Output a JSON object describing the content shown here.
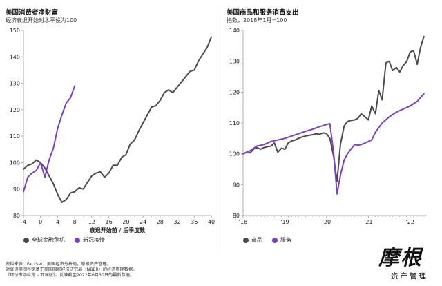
{
  "colors": {
    "dark": "#4a4a4a",
    "purple": "#7b3fc7",
    "axis": "#999999",
    "text": "#222222"
  },
  "chart_data": [
    {
      "type": "line",
      "title": "美国消费者净财富",
      "subtitle": "经济衰退开始时水平设为100",
      "xlabel": "衰退开始前 / 后季度数",
      "ylabel": "",
      "xlim": [
        -4,
        40
      ],
      "ylim": [
        80,
        150
      ],
      "xticks": [
        -4,
        0,
        4,
        8,
        12,
        16,
        20,
        24,
        28,
        32,
        36,
        40
      ],
      "yticks": [
        80,
        90,
        100,
        110,
        120,
        130,
        140,
        150
      ],
      "series": [
        {
          "name": "全球金融危机",
          "color": "#4a4a4a",
          "x": [
            -4,
            -3,
            -2,
            -1,
            0,
            1,
            2,
            3,
            4,
            5,
            6,
            7,
            8,
            9,
            10,
            11,
            12,
            13,
            14,
            15,
            16,
            17,
            18,
            19,
            20,
            21,
            22,
            23,
            24,
            25,
            26,
            27,
            28,
            29,
            30,
            31,
            32,
            33,
            34,
            35,
            36,
            37,
            38,
            39,
            40
          ],
          "y": [
            97.5,
            99,
            99.5,
            101,
            100,
            98,
            95,
            92,
            88,
            85,
            86,
            88.5,
            89,
            90.5,
            90,
            92.5,
            95,
            96,
            96.5,
            94.5,
            96,
            99,
            99,
            102,
            103,
            107,
            108.5,
            112,
            115,
            118,
            121,
            121.5,
            123.5,
            126.5,
            127.5,
            126.5,
            128.5,
            130.5,
            132.5,
            134.5,
            135,
            138.5,
            141,
            143.5,
            147.5
          ]
        },
        {
          "name": "新冠疫情",
          "color": "#7b3fc7",
          "x": [
            -4,
            -3,
            -2,
            -1,
            0,
            1,
            2,
            3,
            4,
            5,
            6,
            7,
            8
          ],
          "y": [
            89,
            94.5,
            96,
            97,
            100,
            94.5,
            101,
            105.5,
            113,
            118,
            122.5,
            124.5,
            129
          ]
        }
      ],
      "legend": [
        "全球金融危机",
        "新冠疫情"
      ]
    },
    {
      "type": "line",
      "title": "美国商品和服务消费支出",
      "subtitle": "指数，2018年1月=100",
      "xlabel": "",
      "ylabel": "",
      "xlim": [
        2018.0,
        2022.4
      ],
      "ylim": [
        80,
        140
      ],
      "xticks": [
        2018,
        2019,
        2020,
        2021,
        2022
      ],
      "xticklabels": [
        "'18",
        "'19",
        "'20",
        "'21",
        "'22"
      ],
      "yticks": [
        80,
        90,
        100,
        110,
        120,
        130,
        140
      ],
      "series": [
        {
          "name": "商品",
          "color": "#4a4a4a",
          "x": [
            2018.0,
            2018.08,
            2018.17,
            2018.25,
            2018.33,
            2018.42,
            2018.5,
            2018.58,
            2018.67,
            2018.75,
            2018.83,
            2018.92,
            2019.0,
            2019.08,
            2019.17,
            2019.25,
            2019.33,
            2019.42,
            2019.5,
            2019.58,
            2019.67,
            2019.75,
            2019.83,
            2019.92,
            2020.0,
            2020.08,
            2020.17,
            2020.25,
            2020.33,
            2020.42,
            2020.5,
            2020.58,
            2020.67,
            2020.75,
            2020.83,
            2020.92,
            2021.0,
            2021.08,
            2021.17,
            2021.25,
            2021.33,
            2021.42,
            2021.5,
            2021.58,
            2021.67,
            2021.75,
            2021.83,
            2021.92,
            2022.0,
            2022.08,
            2022.17,
            2022.25,
            2022.33
          ],
          "y": [
            100,
            100.5,
            100.3,
            101.5,
            102,
            101.5,
            102,
            102.3,
            102.5,
            103.5,
            100.5,
            101.8,
            101.5,
            103.5,
            104.2,
            104.5,
            105,
            105.5,
            105.8,
            106,
            106.2,
            106.5,
            106.3,
            106.8,
            106.5,
            105,
            99,
            91,
            103,
            109,
            110.5,
            110.8,
            111,
            111.5,
            113,
            112,
            111,
            115.5,
            113,
            120.5,
            117.5,
            129.5,
            130,
            127,
            128,
            126.5,
            128.5,
            130,
            133,
            133.5,
            129,
            134.5,
            138
          ]
        },
        {
          "name": "服务",
          "color": "#7b3fc7",
          "x": [
            2018.0,
            2018.17,
            2018.33,
            2018.5,
            2018.67,
            2018.83,
            2019.0,
            2019.17,
            2019.33,
            2019.5,
            2019.67,
            2019.83,
            2020.0,
            2020.08,
            2020.17,
            2020.25,
            2020.33,
            2020.42,
            2020.5,
            2020.58,
            2020.67,
            2020.75,
            2020.83,
            2020.92,
            2021.0,
            2021.08,
            2021.17,
            2021.25,
            2021.33,
            2021.5,
            2021.67,
            2021.83,
            2022.0,
            2022.17,
            2022.33
          ],
          "y": [
            100,
            101,
            102.5,
            103,
            104,
            104.5,
            105,
            105.8,
            106.5,
            107.3,
            108,
            108.8,
            109.5,
            109.8,
            100,
            87,
            93,
            98,
            100,
            101.5,
            103,
            102.8,
            103,
            103.5,
            104,
            104.5,
            107,
            108.5,
            110,
            112,
            113.5,
            114.5,
            115.5,
            117,
            119.5
          ]
        }
      ],
      "legend": [
        "商品",
        "服务"
      ]
    }
  ],
  "footer": {
    "line1": "资料来源：FactSet，美国经济分析局，摩根资产管理。",
    "line2": "对衰退期间界定基于美国国家经济研究局（NBER）的经济周期数据。",
    "line3": "《环球市场纵览 – 亚洲版》。反映截至2022年6月30日的最新数据。"
  },
  "logo": {
    "main": "摩根",
    "sub": "资产管理"
  }
}
